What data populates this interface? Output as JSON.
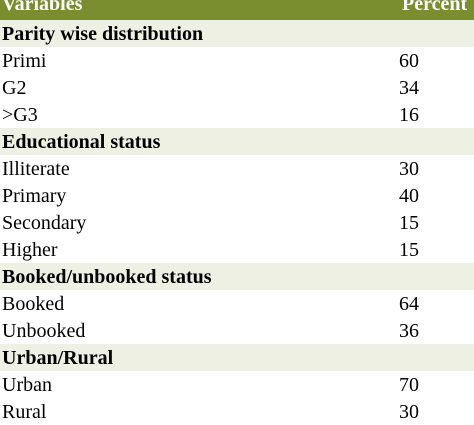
{
  "table": {
    "header": {
      "variable_label": "Variables",
      "value_label": "Percent"
    },
    "sections": [
      {
        "title": "Parity wise distribution",
        "rows": [
          {
            "label": "Primi",
            "value": "60"
          },
          {
            "label": "G2",
            "value": "34"
          },
          {
            "label": ">G3",
            "value": "16"
          }
        ]
      },
      {
        "title": "Educational status",
        "rows": [
          {
            "label": "Illiterate",
            "value": "30"
          },
          {
            "label": "Primary",
            "value": "40"
          },
          {
            "label": "Secondary",
            "value": "15"
          },
          {
            "label": "Higher",
            "value": "15"
          }
        ]
      },
      {
        "title": "Booked/unbooked status",
        "rows": [
          {
            "label": "Booked",
            "value": "64"
          },
          {
            "label": "Unbooked",
            "value": "36"
          }
        ]
      },
      {
        "title": "Urban/Rural",
        "rows": [
          {
            "label": "Urban",
            "value": "70"
          },
          {
            "label": "Rural",
            "value": "30"
          }
        ]
      }
    ]
  },
  "colors": {
    "header_bg": "#7a8d2f",
    "section_bg": "#edf0e3",
    "row_bg": "#ffffff"
  }
}
